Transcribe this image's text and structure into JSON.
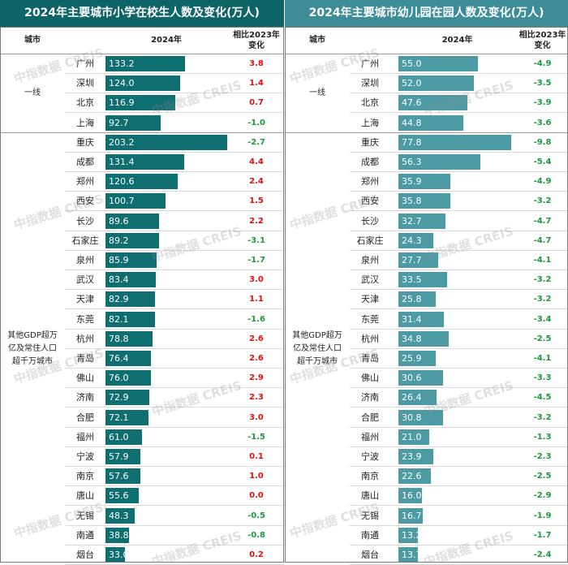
{
  "chart_data": [
    {
      "type": "bar",
      "title": "2024年主要城市小学在校生人数及变化(万人)",
      "header_city": "城市",
      "header_value": "2024年",
      "header_change": [
        "相比2023年",
        "变化"
      ],
      "groups": [
        {
          "name": "一线",
          "count": 4
        },
        {
          "name": "其他GDP超万亿及常住人口超千万城市",
          "lines": [
            "其他GDP超万",
            "亿及常住人口",
            "超千万城市"
          ],
          "count": 22
        }
      ],
      "categories": [
        "广州",
        "深圳",
        "北京",
        "上海",
        "重庆",
        "成都",
        "郑州",
        "西安",
        "长沙",
        "石家庄",
        "泉州",
        "武汉",
        "天津",
        "东莞",
        "杭州",
        "青岛",
        "佛山",
        "济南",
        "合肥",
        "福州",
        "宁波",
        "南京",
        "唐山",
        "无锡",
        "南通",
        "烟台"
      ],
      "series": [
        {
          "name": "2024年",
          "values": [
            133.2,
            124.0,
            116.9,
            92.7,
            203.2,
            131.4,
            120.6,
            100.7,
            89.6,
            89.2,
            85.9,
            83.4,
            82.9,
            82.1,
            78.8,
            76.4,
            76.0,
            72.9,
            72.1,
            61.0,
            57.9,
            57.6,
            55.6,
            48.3,
            38.8,
            33.0
          ]
        },
        {
          "name": "相比2023年变化",
          "values": [
            3.8,
            1.4,
            0.7,
            -1.0,
            -2.7,
            4.4,
            2.4,
            1.5,
            2.2,
            -3.1,
            -1.7,
            3.0,
            1.1,
            -1.6,
            2.6,
            2.6,
            2.9,
            2.3,
            3.0,
            -1.5,
            0.1,
            1.0,
            0.0,
            -0.5,
            -0.8,
            0.2
          ]
        }
      ],
      "value_labels": [
        "133.2",
        "124.0",
        "116.9",
        "92.7",
        "203.2",
        "131.4",
        "120.6",
        "100.7",
        "89.6",
        "89.2",
        "85.9",
        "83.4",
        "82.9",
        "82.1",
        "78.8",
        "76.4",
        "76.0",
        "72.9",
        "72.1",
        "61.0",
        "57.9",
        "57.6",
        "55.6",
        "48.3",
        "38.8",
        "33.0"
      ],
      "change_labels": [
        "3.8",
        "1.4",
        "0.7",
        "-1.0",
        "-2.7",
        "4.4",
        "2.4",
        "1.5",
        "2.2",
        "-3.1",
        "-1.7",
        "3.0",
        "1.1",
        "-1.6",
        "2.6",
        "2.6",
        "2.9",
        "2.3",
        "3.0",
        "-1.5",
        "0.1",
        "1.0",
        "0.0",
        "-0.5",
        "-0.8",
        "0.2"
      ],
      "xlim": [
        0,
        203.2
      ],
      "colors": {
        "title_bg": "#0f6467",
        "bar": "#0f6e70",
        "positive": "#e01010",
        "negative": "#1a9a3a"
      }
    },
    {
      "type": "bar",
      "title": "2024年主要城市幼儿园在园人数及变化(万人)",
      "header_city": "城市",
      "header_value": "2024年",
      "header_change": [
        "相比2023年",
        "变化"
      ],
      "groups": [
        {
          "name": "一线",
          "count": 4
        },
        {
          "name": "其他GDP超万亿及常住人口超千万城市",
          "lines": [
            "其他GDP超万",
            "亿及常住人口",
            "超千万城市"
          ],
          "count": 22
        }
      ],
      "categories": [
        "广州",
        "深圳",
        "北京",
        "上海",
        "重庆",
        "成都",
        "郑州",
        "西安",
        "长沙",
        "石家庄",
        "泉州",
        "武汉",
        "天津",
        "东莞",
        "杭州",
        "青岛",
        "佛山",
        "济南",
        "合肥",
        "福州",
        "宁波",
        "南京",
        "唐山",
        "无锡",
        "南通",
        "烟台"
      ],
      "series": [
        {
          "name": "2024年",
          "values": [
            55.0,
            52.0,
            47.6,
            44.8,
            77.8,
            56.3,
            35.9,
            35.8,
            32.7,
            24.3,
            27.7,
            33.5,
            25.8,
            31.4,
            34.8,
            25.9,
            30.6,
            26.4,
            30.8,
            21.0,
            23.9,
            22.6,
            16.0,
            16.7,
            13.2,
            13.7
          ]
        },
        {
          "name": "相比2023年变化",
          "values": [
            -4.9,
            -3.5,
            -3.9,
            -3.6,
            -9.8,
            -5.4,
            -4.9,
            -3.2,
            -4.7,
            -4.7,
            -4.1,
            -3.2,
            -3.2,
            -3.4,
            -2.5,
            -4.1,
            -3.3,
            -4.5,
            -3.2,
            -1.3,
            -2.3,
            -2.5,
            -2.9,
            -1.9,
            -1.7,
            -2.4
          ]
        }
      ],
      "value_labels": [
        "55.0",
        "52.0",
        "47.6",
        "44.8",
        "77.8",
        "56.3",
        "35.9",
        "35.8",
        "32.7",
        "24.3",
        "27.7",
        "33.5",
        "25.8",
        "31.4",
        "34.8",
        "25.9",
        "30.6",
        "26.4",
        "30.8",
        "21.0",
        "23.9",
        "22.6",
        "16.0",
        "16.7",
        "13.2",
        "13.7"
      ],
      "change_labels": [
        "-4.9",
        "-3.5",
        "-3.9",
        "-3.6",
        "-9.8",
        "-5.4",
        "-4.9",
        "-3.2",
        "-4.7",
        "-4.7",
        "-4.1",
        "-3.2",
        "-3.2",
        "-3.4",
        "-2.5",
        "-4.1",
        "-3.3",
        "-4.5",
        "-3.2",
        "-1.3",
        "-2.3",
        "-2.5",
        "-2.9",
        "-1.9",
        "-1.7",
        "-2.4"
      ],
      "xlim": [
        0,
        77.8
      ],
      "colors": {
        "title_bg": "#3c8d98",
        "bar": "#4b9aa4",
        "positive": "#e01010",
        "negative": "#1a9a3a"
      }
    }
  ],
  "watermark": "中指数据 CREIS"
}
